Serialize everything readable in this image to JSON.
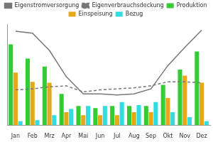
{
  "chart_data": {
    "type": "bar",
    "categories": [
      "Jan",
      "Feb",
      "Mrz",
      "Apr",
      "Mai",
      "Jun",
      "Jul",
      "Aug",
      "Sep",
      "Okt",
      "Nov",
      "Dez"
    ],
    "series": [
      {
        "name": "Produktion",
        "color": "#33cc33",
        "values": [
          80,
          66,
          58,
          31,
          19,
          17,
          19,
          19,
          19,
          40,
          55,
          73
        ]
      },
      {
        "name": "Einspeisung",
        "color": "#e6a817",
        "values": [
          52,
          43,
          42,
          13,
          10,
          10,
          10,
          13,
          13,
          27,
          49,
          42
        ]
      },
      {
        "name": "Bezug",
        "color": "#33dddd",
        "values": [
          4,
          5,
          10,
          16,
          19,
          19,
          23,
          20,
          23,
          13,
          8,
          4
        ]
      },
      {
        "name": "Eigenstromversorgung",
        "color": "#777777",
        "type": "line",
        "line_style": "solid",
        "marker": "none",
        "values": [
          93,
          91,
          74,
          48,
          31,
          31,
          30,
          31,
          36,
          59,
          77,
          94
        ]
      },
      {
        "name": "Eigenverbrauchsdeckung",
        "color": "#777777",
        "type": "line",
        "line_style": "dashed",
        "marker": "none",
        "values": [
          35,
          36,
          38,
          39,
          33,
          35,
          36,
          37,
          39,
          43,
          43,
          42
        ]
      }
    ],
    "ylim": [
      0,
      100
    ],
    "grid": false,
    "legend": "top",
    "tick_labels": "x"
  }
}
